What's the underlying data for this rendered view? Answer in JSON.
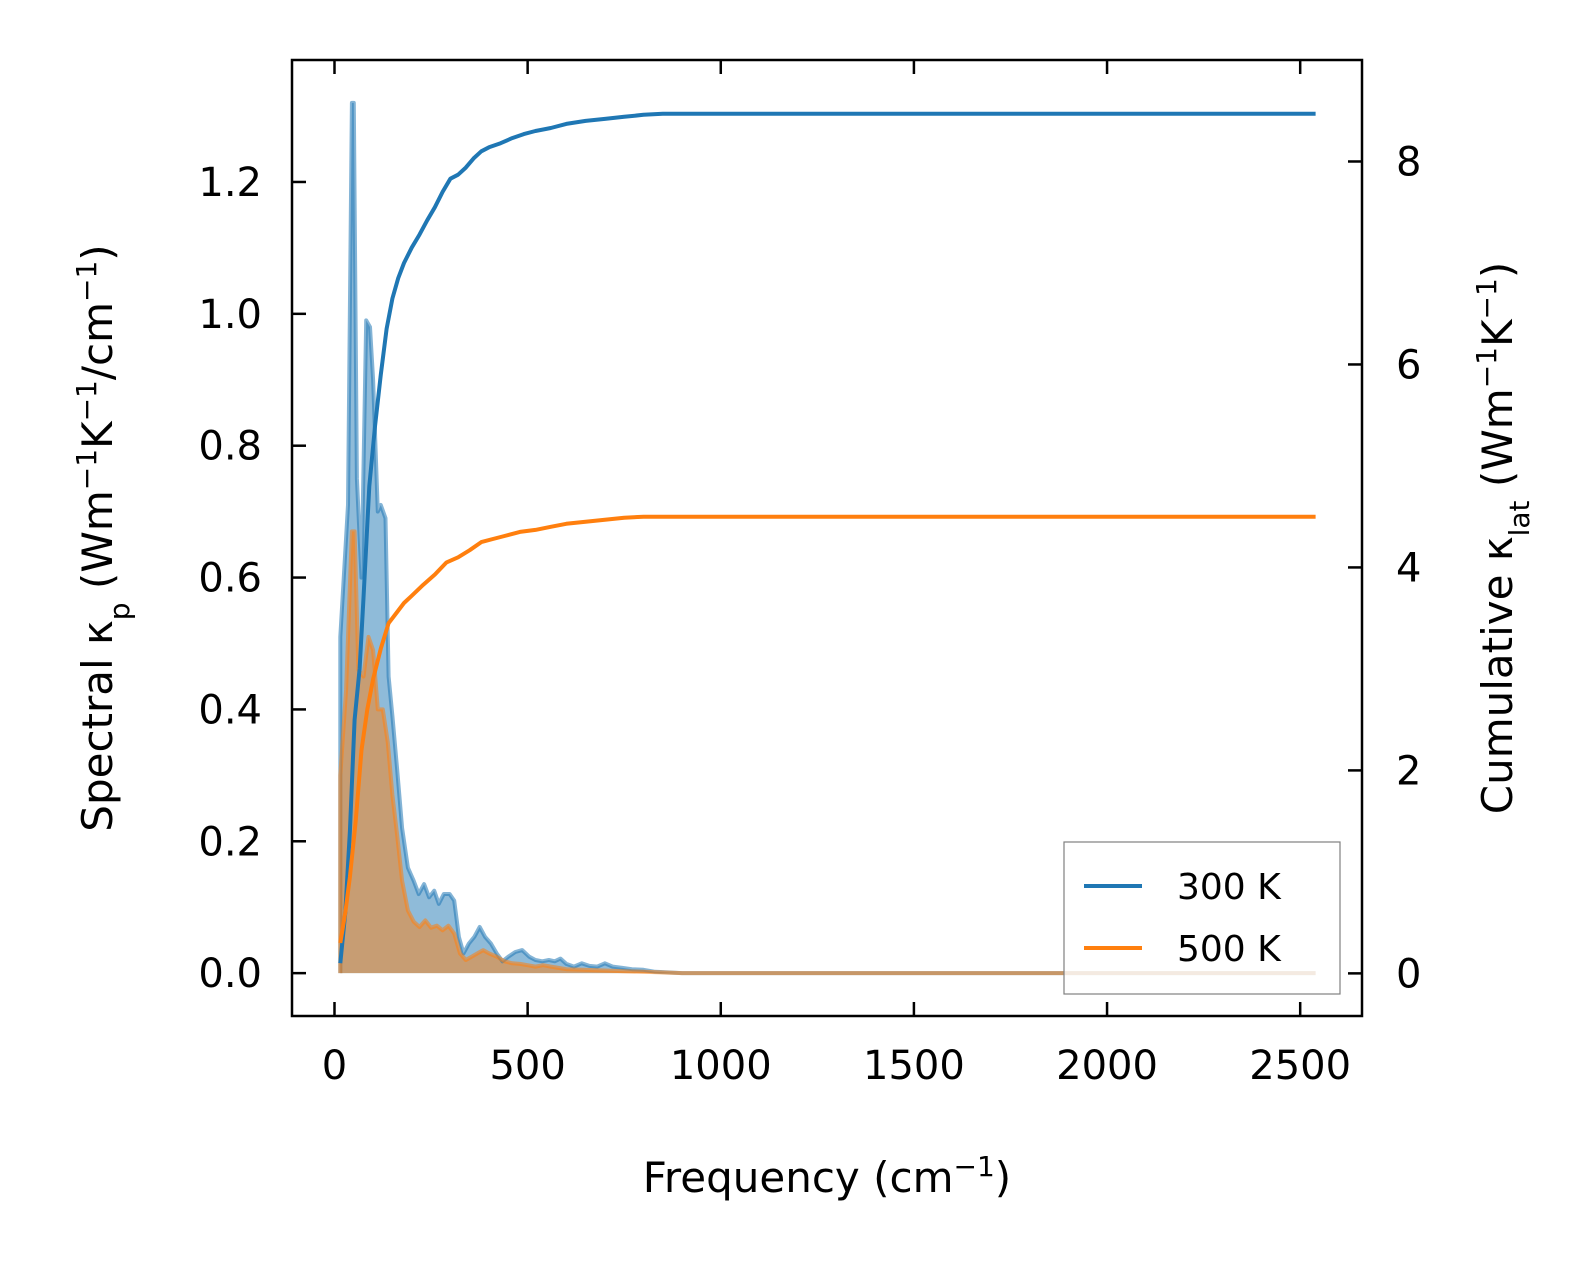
{
  "colors": {
    "t300": "#1f77b4",
    "t500": "#ff7f0e",
    "axis": "#000000",
    "legend_frame": "#808080"
  },
  "chart_data": {
    "type": "line",
    "x_axis": {
      "label_main": "Frequency (cm",
      "label_sup": "−1",
      "label_end": ")",
      "range": [
        -110,
        2660
      ],
      "ticks": [
        0,
        500,
        1000,
        1500,
        2000,
        2500
      ],
      "tick_labels": [
        "0",
        "500",
        "1000",
        "1500",
        "2000",
        "2500"
      ]
    },
    "y_left": {
      "label_parts": [
        {
          "t": "Spectral κ",
          "s": ""
        },
        {
          "t": "p",
          "s": "sub"
        },
        {
          "t": " (Wm",
          "s": ""
        },
        {
          "t": "−1",
          "s": "sup"
        },
        {
          "t": "K",
          "s": ""
        },
        {
          "t": "−1",
          "s": "sup"
        },
        {
          "t": "/cm",
          "s": ""
        },
        {
          "t": "−1",
          "s": "sup"
        },
        {
          "t": ")",
          "s": ""
        }
      ],
      "range": [
        -0.065,
        1.385
      ],
      "ticks": [
        0.0,
        0.2,
        0.4,
        0.6,
        0.8,
        1.0,
        1.2
      ],
      "tick_labels": [
        "0.0",
        "0.2",
        "0.4",
        "0.6",
        "0.8",
        "1.0",
        "1.2"
      ]
    },
    "y_right": {
      "label_parts": [
        {
          "t": "Cumulative κ",
          "s": ""
        },
        {
          "t": "lat",
          "s": "sub"
        },
        {
          "t": " (Wm",
          "s": ""
        },
        {
          "t": "−1",
          "s": "sup"
        },
        {
          "t": "K",
          "s": ""
        },
        {
          "t": "−1",
          "s": "sup"
        },
        {
          "t": ")",
          "s": ""
        }
      ],
      "range": [
        -0.42,
        9.0
      ],
      "ticks": [
        0,
        2,
        4,
        6,
        8
      ],
      "tick_labels": [
        "0",
        "2",
        "4",
        "6",
        "8"
      ]
    },
    "legend": {
      "placement": "lower-right",
      "entries": [
        "300 K",
        "500 K"
      ]
    },
    "grid": false,
    "series": [
      {
        "name": "300 K",
        "color_key": "t300",
        "spectral": [
          [
            15,
            0.0
          ],
          [
            15,
            0.51
          ],
          [
            35,
            0.71
          ],
          [
            45,
            1.32
          ],
          [
            50,
            1.32
          ],
          [
            58,
            0.75
          ],
          [
            70,
            0.6
          ],
          [
            82,
            0.99
          ],
          [
            92,
            0.98
          ],
          [
            100,
            0.9
          ],
          [
            112,
            0.7
          ],
          [
            120,
            0.71
          ],
          [
            132,
            0.69
          ],
          [
            140,
            0.45
          ],
          [
            150,
            0.39
          ],
          [
            162,
            0.31
          ],
          [
            175,
            0.22
          ],
          [
            190,
            0.16
          ],
          [
            205,
            0.14
          ],
          [
            218,
            0.12
          ],
          [
            232,
            0.135
          ],
          [
            245,
            0.115
          ],
          [
            258,
            0.125
          ],
          [
            270,
            0.105
          ],
          [
            283,
            0.12
          ],
          [
            298,
            0.12
          ],
          [
            310,
            0.11
          ],
          [
            322,
            0.055
          ],
          [
            334,
            0.03
          ],
          [
            348,
            0.045
          ],
          [
            362,
            0.055
          ],
          [
            376,
            0.07
          ],
          [
            390,
            0.055
          ],
          [
            405,
            0.045
          ],
          [
            420,
            0.03
          ],
          [
            435,
            0.018
          ],
          [
            450,
            0.025
          ],
          [
            468,
            0.032
          ],
          [
            486,
            0.035
          ],
          [
            504,
            0.025
          ],
          [
            520,
            0.02
          ],
          [
            538,
            0.018
          ],
          [
            555,
            0.02
          ],
          [
            570,
            0.018
          ],
          [
            585,
            0.022
          ],
          [
            600,
            0.014
          ],
          [
            620,
            0.01
          ],
          [
            640,
            0.015
          ],
          [
            660,
            0.011
          ],
          [
            680,
            0.01
          ],
          [
            700,
            0.015
          ],
          [
            720,
            0.01
          ],
          [
            745,
            0.008
          ],
          [
            770,
            0.006
          ],
          [
            800,
            0.005
          ],
          [
            830,
            0.002
          ],
          [
            900,
            0.0
          ],
          [
            2540,
            0.0
          ]
        ],
        "cumulative": [
          [
            15,
            0.1
          ],
          [
            28,
            0.6
          ],
          [
            40,
            1.4
          ],
          [
            52,
            2.5
          ],
          [
            65,
            3.0
          ],
          [
            75,
            3.7
          ],
          [
            90,
            4.8
          ],
          [
            105,
            5.4
          ],
          [
            120,
            5.9
          ],
          [
            135,
            6.35
          ],
          [
            150,
            6.65
          ],
          [
            165,
            6.85
          ],
          [
            180,
            7.0
          ],
          [
            200,
            7.15
          ],
          [
            220,
            7.28
          ],
          [
            240,
            7.42
          ],
          [
            260,
            7.55
          ],
          [
            280,
            7.7
          ],
          [
            300,
            7.83
          ],
          [
            320,
            7.87
          ],
          [
            340,
            7.94
          ],
          [
            360,
            8.03
          ],
          [
            380,
            8.1
          ],
          [
            400,
            8.14
          ],
          [
            430,
            8.18
          ],
          [
            460,
            8.23
          ],
          [
            490,
            8.27
          ],
          [
            520,
            8.3
          ],
          [
            560,
            8.33
          ],
          [
            600,
            8.37
          ],
          [
            650,
            8.4
          ],
          [
            700,
            8.42
          ],
          [
            750,
            8.44
          ],
          [
            800,
            8.46
          ],
          [
            850,
            8.47
          ],
          [
            2540,
            8.47
          ]
        ]
      },
      {
        "name": "500 K",
        "color_key": "t500",
        "spectral": [
          [
            15,
            0.0
          ],
          [
            15,
            0.3
          ],
          [
            30,
            0.43
          ],
          [
            45,
            0.67
          ],
          [
            52,
            0.67
          ],
          [
            62,
            0.46
          ],
          [
            75,
            0.45
          ],
          [
            88,
            0.51
          ],
          [
            100,
            0.49
          ],
          [
            112,
            0.4
          ],
          [
            125,
            0.4
          ],
          [
            138,
            0.35
          ],
          [
            150,
            0.27
          ],
          [
            162,
            0.21
          ],
          [
            175,
            0.14
          ],
          [
            190,
            0.095
          ],
          [
            205,
            0.078
          ],
          [
            220,
            0.07
          ],
          [
            235,
            0.08
          ],
          [
            250,
            0.069
          ],
          [
            265,
            0.072
          ],
          [
            280,
            0.065
          ],
          [
            295,
            0.072
          ],
          [
            310,
            0.06
          ],
          [
            325,
            0.03
          ],
          [
            340,
            0.02
          ],
          [
            355,
            0.025
          ],
          [
            370,
            0.03
          ],
          [
            385,
            0.035
          ],
          [
            400,
            0.03
          ],
          [
            420,
            0.025
          ],
          [
            440,
            0.018
          ],
          [
            460,
            0.015
          ],
          [
            480,
            0.014
          ],
          [
            500,
            0.012
          ],
          [
            520,
            0.01
          ],
          [
            540,
            0.012
          ],
          [
            560,
            0.01
          ],
          [
            580,
            0.008
          ],
          [
            600,
            0.006
          ],
          [
            640,
            0.005
          ],
          [
            700,
            0.004
          ],
          [
            750,
            0.003
          ],
          [
            800,
            0.002
          ],
          [
            900,
            0.0
          ],
          [
            2540,
            0.0
          ]
        ],
        "cumulative": [
          [
            15,
            0.3
          ],
          [
            28,
            0.6
          ],
          [
            40,
            0.95
          ],
          [
            55,
            1.5
          ],
          [
            70,
            2.2
          ],
          [
            85,
            2.6
          ],
          [
            100,
            2.9
          ],
          [
            120,
            3.2
          ],
          [
            140,
            3.45
          ],
          [
            160,
            3.55
          ],
          [
            180,
            3.65
          ],
          [
            200,
            3.72
          ],
          [
            230,
            3.83
          ],
          [
            260,
            3.93
          ],
          [
            290,
            4.05
          ],
          [
            320,
            4.1
          ],
          [
            350,
            4.17
          ],
          [
            380,
            4.25
          ],
          [
            410,
            4.28
          ],
          [
            440,
            4.31
          ],
          [
            480,
            4.35
          ],
          [
            520,
            4.37
          ],
          [
            560,
            4.4
          ],
          [
            600,
            4.43
          ],
          [
            650,
            4.45
          ],
          [
            700,
            4.47
          ],
          [
            750,
            4.49
          ],
          [
            800,
            4.5
          ],
          [
            850,
            4.5
          ],
          [
            2540,
            4.5
          ]
        ]
      }
    ]
  }
}
